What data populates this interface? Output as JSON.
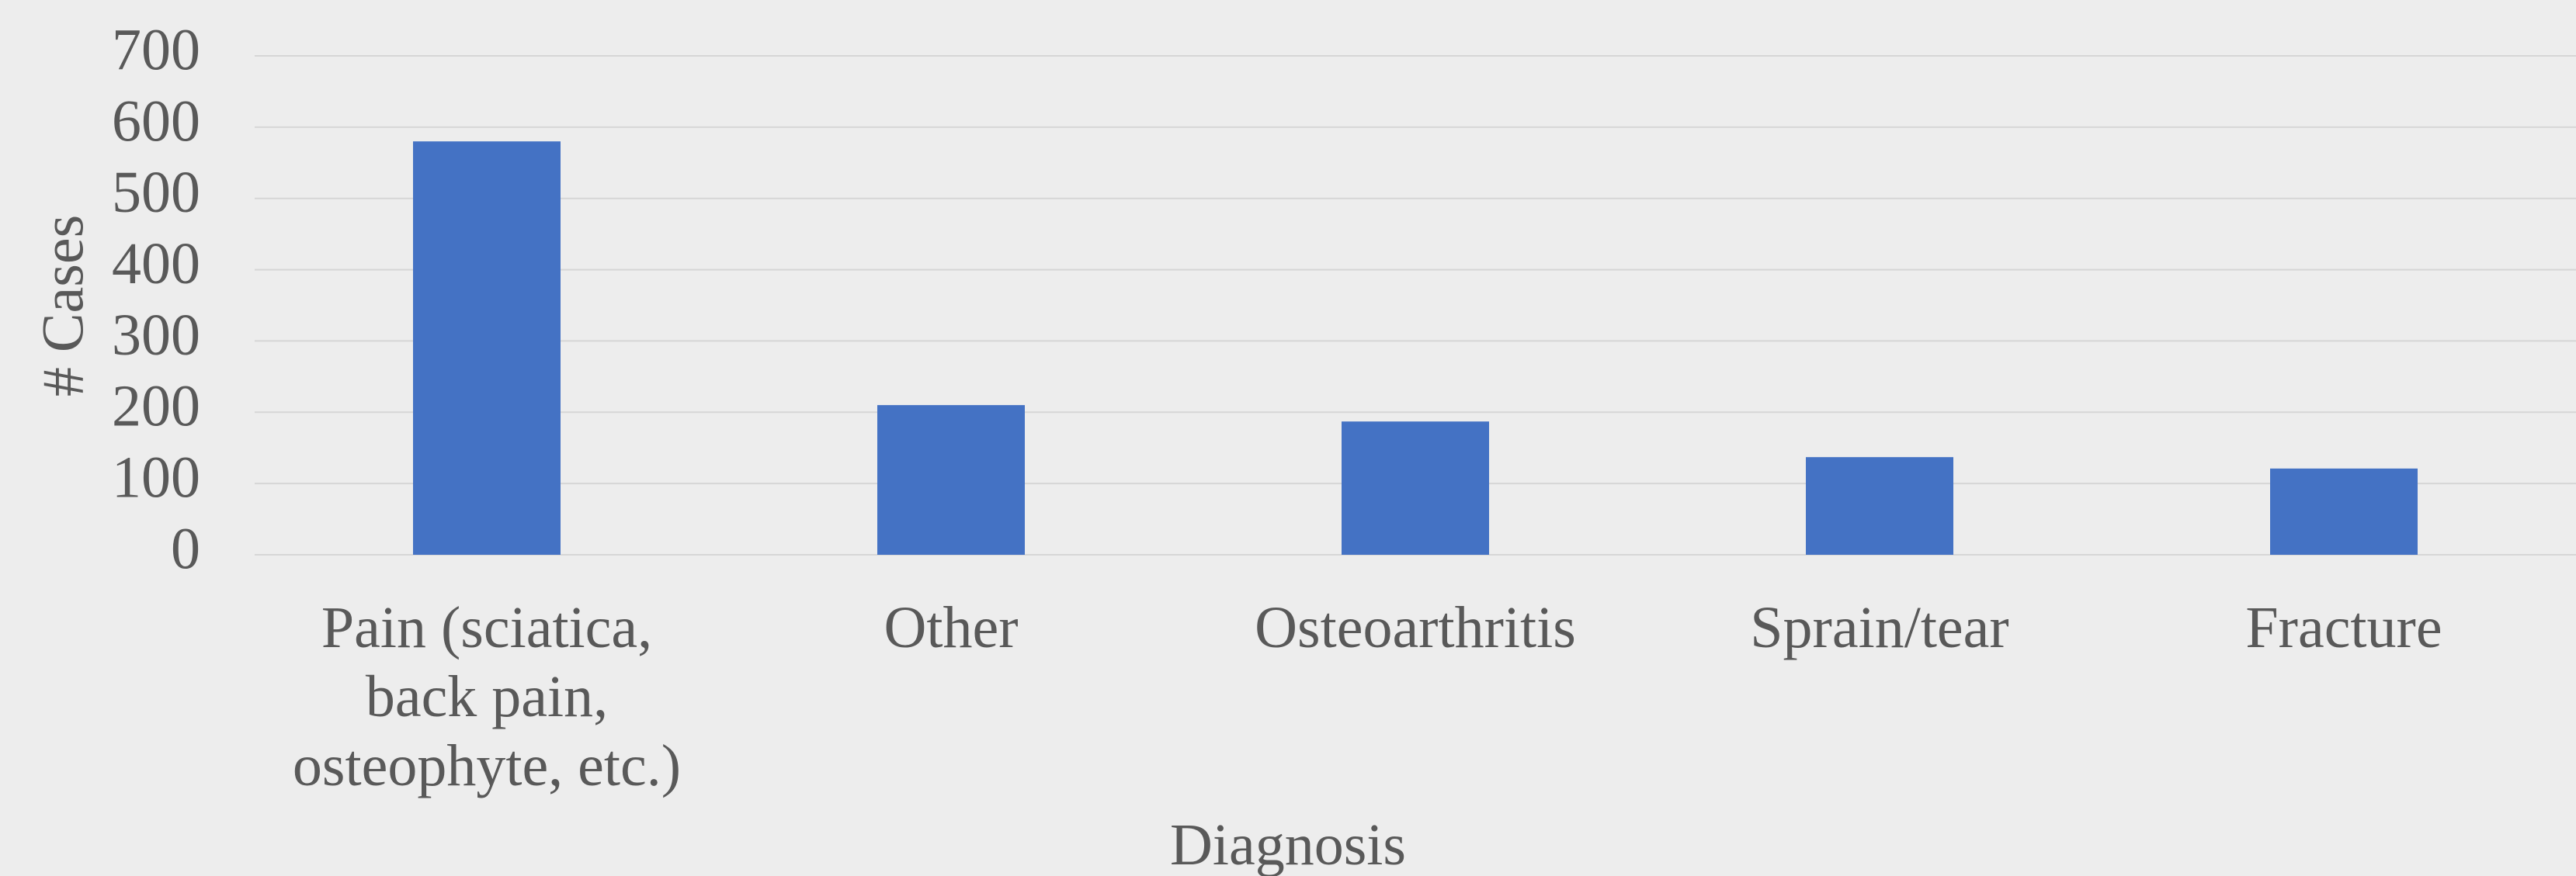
{
  "chart_data": {
    "type": "bar",
    "x_label": "Diagnosis",
    "y_label": "# Cases",
    "categories": [
      "Pain (sciatica, back pain, osteophyte, etc.)",
      "Other",
      "Osteoarthritis",
      "Sprain/tear",
      "Fracture"
    ],
    "values": [
      580,
      210,
      187,
      137,
      121
    ],
    "color": "#4472c4",
    "ylim": [
      0,
      700
    ],
    "yticks": [
      0,
      100,
      200,
      300,
      400,
      500,
      600,
      700
    ],
    "grid": true
  }
}
